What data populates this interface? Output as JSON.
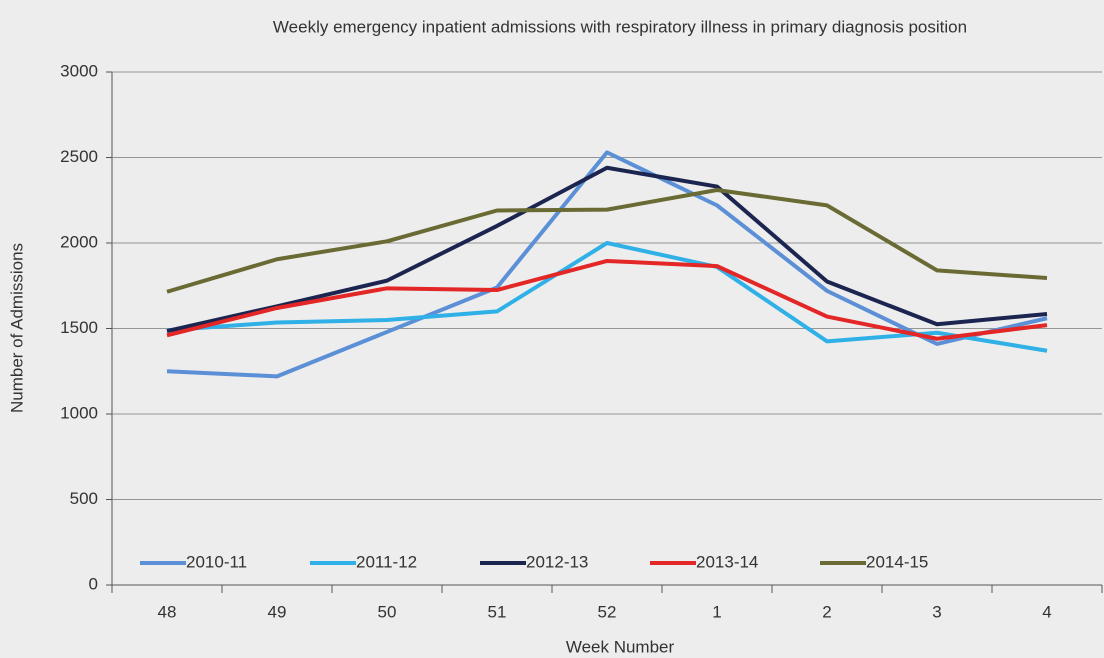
{
  "chart_data": {
    "type": "line",
    "title": "Weekly emergency inpatient admissions with respiratory illness in primary diagnosis position",
    "x_label": "Week Number",
    "y_label": "Number of Admissions",
    "categories": [
      "48",
      "49",
      "50",
      "51",
      "52",
      "1",
      "2",
      "3",
      "4"
    ],
    "series": [
      {
        "name": "2010-11",
        "color": "#5b8fd6",
        "values": [
          1250,
          1220,
          1480,
          1740,
          2530,
          2220,
          1720,
          1410,
          1560
        ]
      },
      {
        "name": "2011-12",
        "color": "#2fb0e6",
        "values": [
          1490,
          1535,
          1550,
          1600,
          2000,
          1860,
          1425,
          1475,
          1370
        ]
      },
      {
        "name": "2012-13",
        "color": "#1c2550",
        "values": [
          1485,
          1630,
          1780,
          2100,
          2440,
          2330,
          1775,
          1525,
          1585
        ]
      },
      {
        "name": "2013-14",
        "color": "#e32626",
        "values": [
          1460,
          1620,
          1735,
          1725,
          1895,
          1865,
          1570,
          1440,
          1520
        ]
      },
      {
        "name": "2014-15",
        "color": "#6a6a34",
        "values": [
          1715,
          1905,
          2010,
          2190,
          2195,
          2310,
          2220,
          1840,
          1795
        ]
      }
    ],
    "ylim": [
      0,
      3000
    ],
    "yticks": [
      0,
      500,
      1000,
      1500,
      2000,
      2500,
      3000
    ],
    "grid": true,
    "legend": "bottom-left"
  }
}
